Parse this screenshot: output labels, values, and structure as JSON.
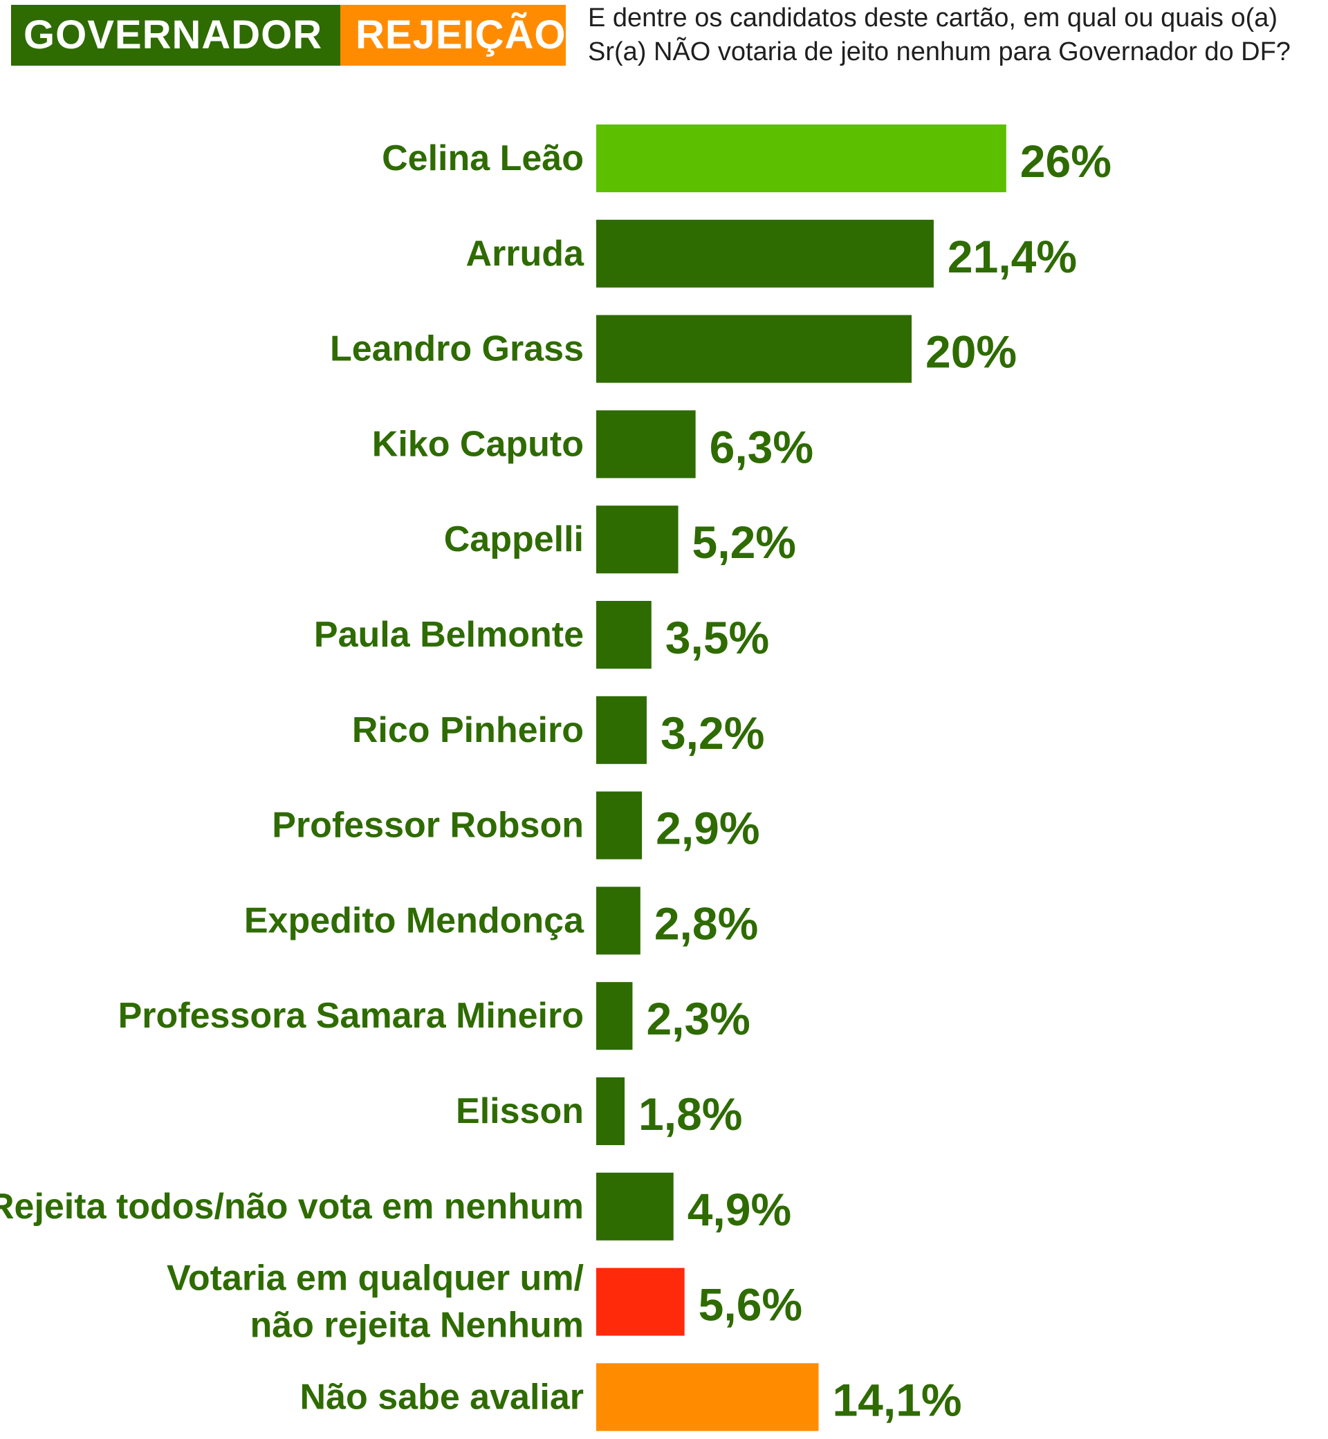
{
  "header": {
    "tag_primary": "GOVERNADOR",
    "tag_secondary": "REJEIÇÃO",
    "question": "E dentre os candidatos deste cartão, em qual ou quais o(a)\nSr(a) NÃO votaria de jeito nenhum para Governador do DF?"
  },
  "colors": {
    "dark_green": "#2e6b00",
    "light_green": "#5cbf00",
    "red": "#ff2a0a",
    "orange": "#ff8c00",
    "text_green": "#2e6b00"
  },
  "chart_data": {
    "type": "bar",
    "orientation": "horizontal",
    "categories": [
      [
        "Celina Leão"
      ],
      [
        "Arruda"
      ],
      [
        "Leandro Grass"
      ],
      [
        "Kiko Caputo"
      ],
      [
        "Cappelli"
      ],
      [
        "Paula Belmonte"
      ],
      [
        "Rico Pinheiro"
      ],
      [
        "Professor Robson"
      ],
      [
        "Expedito Mendonça"
      ],
      [
        "Professora Samara Mineiro"
      ],
      [
        "Elisson"
      ],
      [
        "Rejeita todos/não vota em nenhum"
      ],
      [
        "Votaria em qualquer um/",
        "não rejeita Nenhum"
      ],
      [
        "Não sabe avaliar"
      ]
    ],
    "values": [
      26,
      21.4,
      20,
      6.3,
      5.2,
      3.5,
      3.2,
      2.9,
      2.8,
      2.3,
      1.8,
      4.9,
      5.6,
      14.1
    ],
    "value_labels": [
      "26%",
      "21,4%",
      "20%",
      "6,3%",
      "5,2%",
      "3,5%",
      "3,2%",
      "2,9%",
      "2,8%",
      "2,3%",
      "1,8%",
      "4,9%",
      "5,6%",
      "14,1%"
    ],
    "bar_colors": [
      "light_green",
      "dark_green",
      "dark_green",
      "dark_green",
      "dark_green",
      "dark_green",
      "dark_green",
      "dark_green",
      "dark_green",
      "dark_green",
      "dark_green",
      "dark_green",
      "red",
      "orange"
    ],
    "title": "",
    "xlabel": "",
    "ylabel": "",
    "grid": false
  }
}
